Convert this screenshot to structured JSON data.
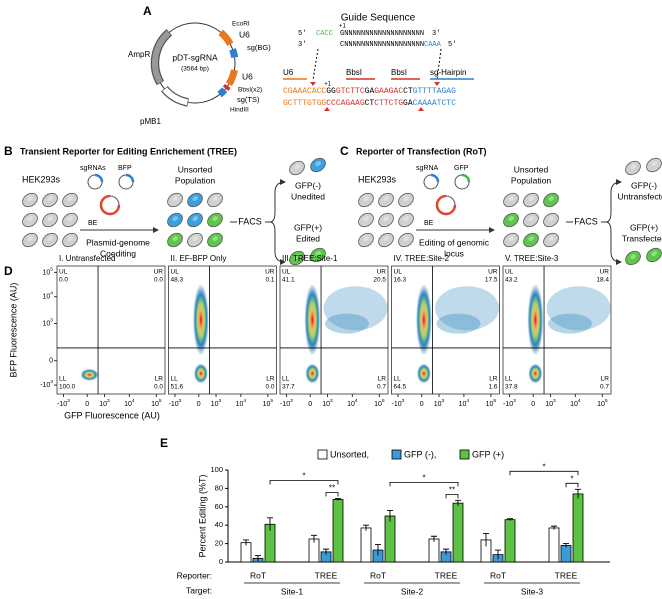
{
  "panel_a": {
    "label": "A",
    "plasmid": {
      "name": "pDT-sgRNA",
      "size": "(3564 bp)",
      "features": [
        "AmpR",
        "pMB1",
        "EcoRI",
        "U6",
        "sg(BG)",
        "U6",
        "BbsI(x2)",
        "sg(TS)",
        "HindIII"
      ]
    },
    "guide": {
      "title": "Guide Sequence",
      "plus1": "+1",
      "top": [
        "5'",
        "CACC",
        "GNNNNNNNNNNNNNNNNNNN",
        "3'"
      ],
      "bottom": [
        "3'",
        "CNNNNNNNNNNNNNNNNNNN",
        "CAAA",
        "5'"
      ]
    },
    "insert": {
      "labels": [
        "U6",
        "BbsI",
        "BbsI",
        "sg-Hairpin"
      ],
      "plus1": "+1",
      "top": [
        "CGAAA",
        "CACC",
        "GG",
        "GTCTTC",
        "GA",
        "GAAGAC",
        "CT",
        "GTTTTAGAG"
      ],
      "bottom": [
        "GCTTTGTGG",
        "CCCAGAAG",
        "CT",
        "CTTCTG",
        "GA",
        "CAAA",
        "ATCTC"
      ]
    }
  },
  "panel_b": {
    "label": "B",
    "title": "Transient Reporter for Editing Enrichement (TREE)",
    "cells": "HEK293s",
    "plasmid_labels": [
      "sgRNAs",
      "BFP",
      "BE"
    ],
    "process": [
      "Plasmid-genome",
      "Coediting"
    ],
    "pool": [
      "Unsorted",
      "Population"
    ],
    "sort": "FACS",
    "negative": [
      "GFP(-)",
      "Unedited"
    ],
    "positive": [
      "GFP(+)",
      "Edited"
    ]
  },
  "panel_c": {
    "label": "C",
    "title": "Reporter of Transfection (RoT)",
    "cells": "HEK293s",
    "plasmid_labels": [
      "sgRNA",
      "GFP",
      "BE"
    ],
    "process": [
      "Editing of genomic",
      "locus"
    ],
    "pool": [
      "Unsorted",
      "Population"
    ],
    "sort": "FACS",
    "negative": [
      "GFP(-)",
      "Untransfected"
    ],
    "positive": [
      "GFP(+)",
      "Transfected"
    ]
  },
  "panel_d": {
    "label": "D",
    "y_label": "BFP Fluorescence (AU)",
    "x_label": "GFP Fluorescence (AU)",
    "y_ticks": [
      {
        "b": "10",
        "e": "5"
      },
      {
        "b": "10",
        "e": "4"
      },
      {
        "b": "10",
        "e": "3"
      },
      {
        "b": "0"
      },
      {
        "b": "-10",
        "e": "3"
      }
    ],
    "x_ticks": [
      {
        "b": "-10",
        "e": "3"
      },
      {
        "b": "0"
      },
      {
        "b": "10",
        "e": "3"
      },
      {
        "b": "10",
        "e": "4"
      },
      {
        "b": "10",
        "e": "5"
      }
    ],
    "quadrants": [
      "UL",
      "UR",
      "LL",
      "LR"
    ],
    "plots": [
      {
        "title": "I. Untransfected",
        "values": [
          "0.0",
          "0.0",
          "100.0",
          "0.0"
        ]
      },
      {
        "title": "II. EF-BFP Only",
        "values": [
          "48.3",
          "0.1",
          "51.6",
          "0.0"
        ]
      },
      {
        "title": "III. TREE:Site-1",
        "values": [
          "41.1",
          "20.5",
          "37.7",
          "0.7"
        ]
      },
      {
        "title": "IV. TREE:Site-2",
        "values": [
          "16.3",
          "17.5",
          "64.5",
          "1.6"
        ]
      },
      {
        "title": "V. TREE:Site-3",
        "values": [
          "43.2",
          "18.4",
          "37.8",
          "0.7"
        ]
      }
    ]
  },
  "chart_data": {
    "type": "bar",
    "label": "E",
    "y_label": "Percent Editing (%T)",
    "category_title": "Reporter:",
    "categories": [
      "RoT",
      "TREE",
      "RoT",
      "TREE",
      "RoT",
      "TREE"
    ],
    "group_title": "Target:",
    "groups": [
      "Site-1",
      "Site-2",
      "Site-3"
    ],
    "series": [
      {
        "name": "Unsorted,",
        "color": "#ffffff",
        "values": [
          21,
          25,
          37,
          25,
          24,
          37
        ],
        "errors": [
          3,
          4,
          3,
          3,
          7,
          2
        ]
      },
      {
        "name": "GFP (-),",
        "color": "#3d9ad9",
        "values": [
          4,
          11,
          13,
          11,
          8,
          18
        ],
        "errors": [
          3,
          3,
          6,
          3,
          5,
          2
        ]
      },
      {
        "name": "GFP (+)",
        "color": "#5bc244",
        "values": [
          41,
          68,
          50,
          64,
          46,
          74
        ],
        "errors": [
          7,
          1,
          6,
          3,
          1,
          5
        ]
      }
    ],
    "ylim": [
      0,
      100
    ],
    "yticks": [
      0,
      20,
      40,
      60,
      80,
      100
    ],
    "significance": [
      "*",
      "**",
      "*",
      "**",
      "*",
      "*"
    ]
  }
}
